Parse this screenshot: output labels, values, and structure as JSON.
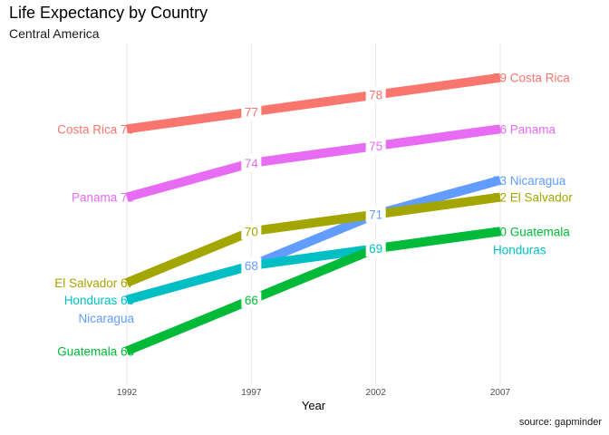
{
  "chart_data": {
    "type": "line",
    "title": "Life Expectancy by Country",
    "subtitle": "Central America",
    "caption": "source: gapminder",
    "xlabel": "Year",
    "ylabel": "",
    "x": [
      1992,
      1997,
      2002,
      2007
    ],
    "ylim": [
      61,
      81
    ],
    "grid": "vertical",
    "legend": "none",
    "series": [
      {
        "name": "Costa Rica",
        "color": "#F8766D",
        "values": [
          76,
          77,
          78,
          79
        ]
      },
      {
        "name": "Panama",
        "color": "#E76BF3",
        "values": [
          72,
          74,
          75,
          76
        ]
      },
      {
        "name": "Nicaragua",
        "color": "#619CFF",
        "values": [
          66,
          68,
          71,
          73
        ]
      },
      {
        "name": "El Salvador",
        "color": "#A3A500",
        "values": [
          67,
          70,
          71,
          72
        ]
      },
      {
        "name": "Honduras",
        "color": "#00BFC4",
        "values": [
          66,
          68,
          69,
          70
        ]
      },
      {
        "name": "Guatemala",
        "color": "#00BA38",
        "values": [
          63,
          66,
          69,
          70
        ]
      }
    ],
    "start_labels": [
      {
        "series": "Costa Rica",
        "text": "Costa Rica 76"
      },
      {
        "series": "Panama",
        "text": "Panama 72"
      },
      {
        "series": "El Salvador",
        "text": "El Salvador 67"
      },
      {
        "series": "Honduras",
        "text": "Honduras 66"
      },
      {
        "series": "Nicaragua",
        "text": "Nicaragua"
      },
      {
        "series": "Guatemala",
        "text": "Guatemala 63"
      }
    ],
    "end_labels": [
      {
        "series": "Costa Rica",
        "text": "79 Costa Rica"
      },
      {
        "series": "Panama",
        "text": "76 Panama"
      },
      {
        "series": "Nicaragua",
        "text": "73 Nicaragua"
      },
      {
        "series": "El Salvador",
        "text": "72 El Salvador"
      },
      {
        "series": "Guatemala",
        "text": "70 Guatemala"
      },
      {
        "series": "Honduras",
        "text": "Honduras"
      }
    ],
    "point_labels": [
      {
        "series": "Costa Rica",
        "x": 1997,
        "y": 77,
        "text": "77"
      },
      {
        "series": "Costa Rica",
        "x": 2002,
        "y": 78,
        "text": "78"
      },
      {
        "series": "Panama",
        "x": 1997,
        "y": 74,
        "text": "74"
      },
      {
        "series": "Panama",
        "x": 2002,
        "y": 75,
        "text": "75"
      },
      {
        "series": "El Salvador",
        "x": 1997,
        "y": 70,
        "text": "70"
      },
      {
        "series": "Nicaragua",
        "x": 1997,
        "y": 68,
        "text": "68"
      },
      {
        "series": "Nicaragua",
        "x": 2002,
        "y": 71,
        "text": "71"
      },
      {
        "series": "Guatemala",
        "x": 1997,
        "y": 66,
        "text": "66"
      },
      {
        "series": "Honduras",
        "x": 2002,
        "y": 69,
        "text": "69"
      }
    ]
  }
}
